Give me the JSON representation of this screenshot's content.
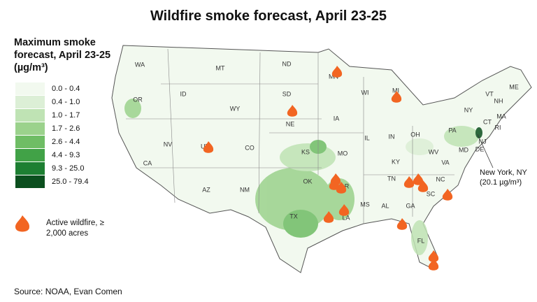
{
  "title": "Wildfire smoke forecast, April 23-25",
  "legend": {
    "title": "Maximum smoke forecast, April 23-25 (µg/m³)",
    "bins": [
      {
        "label": "0.0 - 0.4",
        "color": "#f2f9ef"
      },
      {
        "label": "0.4 - 1.0",
        "color": "#dcefd6"
      },
      {
        "label": "1.0 - 1.7",
        "color": "#bfe3b4"
      },
      {
        "label": "1.7 - 2.6",
        "color": "#9bd28c"
      },
      {
        "label": "2.6 - 4.4",
        "color": "#6fbd65"
      },
      {
        "label": "4.4 - 9.3",
        "color": "#41a247"
      },
      {
        "label": "9.3 - 25.0",
        "color": "#1d7f32"
      },
      {
        "label": "25.0 - 79.4",
        "color": "#0b4f1e"
      }
    ]
  },
  "wildfire_legend": "Active wildfire, ≥ 2,000 acres",
  "annotation": "New York, NY (20.1 µg/m³)",
  "source": "Source: NOAA, Evan Comen",
  "states": [
    "WA",
    "MT",
    "ND",
    "MN",
    "WI",
    "MI",
    "VT",
    "ME",
    "NH",
    "MA",
    "CT",
    "RI",
    "NY",
    "PA",
    "NJ",
    "DE",
    "MD",
    "OR",
    "ID",
    "WY",
    "SD",
    "NE",
    "IA",
    "IL",
    "IN",
    "OH",
    "WV",
    "VA",
    "NV",
    "UT",
    "CO",
    "KS",
    "MO",
    "KY",
    "CA",
    "AZ",
    "NM",
    "OK",
    "AR",
    "TN",
    "NC",
    "SC",
    "GA",
    "AL",
    "MS",
    "LA",
    "TX",
    "FL"
  ]
}
